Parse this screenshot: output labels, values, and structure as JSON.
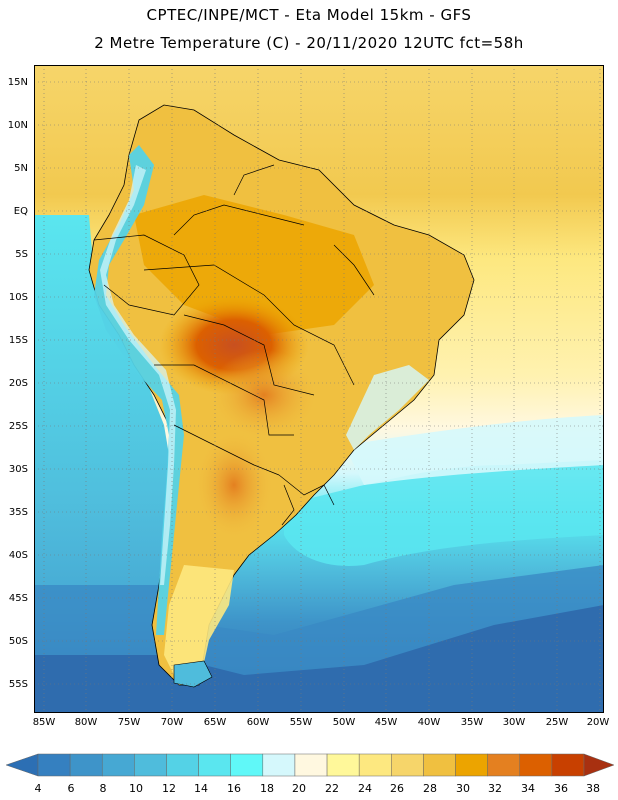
{
  "header": {
    "line1": "CPTEC/INPE/MCT -  Eta Model 15km - GFS",
    "line2": "2 Metre Temperature (C) - 20/11/2020 12UTC fct=58h"
  },
  "axes": {
    "lat_labels": [
      "15N",
      "10N",
      "5N",
      "EQ",
      "5S",
      "10S",
      "15S",
      "20S",
      "25S",
      "30S",
      "35S",
      "40S",
      "45S",
      "50S",
      "55S"
    ],
    "lon_labels": [
      "85W",
      "80W",
      "75W",
      "70W",
      "65W",
      "60W",
      "55W",
      "50W",
      "45W",
      "40W",
      "35W",
      "30W",
      "25W",
      "20W"
    ]
  },
  "colorbar": {
    "levels": [
      "4",
      "6",
      "8",
      "10",
      "12",
      "14",
      "16",
      "18",
      "20",
      "22",
      "24",
      "26",
      "28",
      "30",
      "32",
      "34",
      "36",
      "38"
    ],
    "colors": [
      "#2c6fb4",
      "#3580c0",
      "#3e94c9",
      "#46a8d3",
      "#4fbcdc",
      "#54d2e6",
      "#5ae6ef",
      "#60f8f8",
      "#d5f8fc",
      "#fff8e0",
      "#fff89a",
      "#fde880",
      "#f6d56a",
      "#f0c040",
      "#eca400",
      "#e48020",
      "#dc6000",
      "#c84000",
      "#a83010"
    ]
  },
  "ocean_colors": {
    "deep_south": "#2f6cae",
    "south": "#3a8ac4",
    "mid": "#4cb8d9",
    "cyan": "#5ae6ef",
    "pale": "#d5f8fc",
    "cream": "#fff8e0",
    "warm_yellow": "#f6d56a",
    "tropic": "#f0c040",
    "land_hot": "#e48020",
    "land_very_hot": "#c85020",
    "andes": "#4fbcdc",
    "land_warm": "#eca400"
  }
}
